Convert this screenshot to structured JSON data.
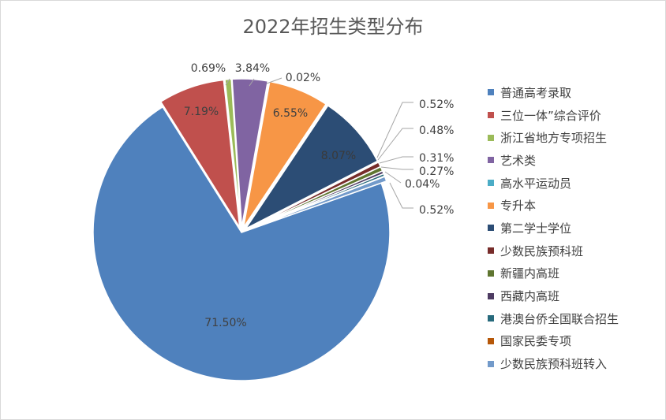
{
  "chart_data": {
    "type": "pie",
    "title": "2022年招生类型分布",
    "legend_position": "right",
    "series": [
      {
        "name": "普通高考录取",
        "value": 71.5,
        "label": "71.50%",
        "color": "#4F81BD"
      },
      {
        "name": "三位一体”综合评价",
        "value": 7.19,
        "label": "7.19%",
        "color": "#C0504D"
      },
      {
        "name": "浙江省地方专项招生",
        "value": 0.69,
        "label": "0.69%",
        "color": "#9BBB59"
      },
      {
        "name": "艺术类",
        "value": 3.84,
        "label": "3.84%",
        "color": "#8064A2"
      },
      {
        "name": "高水平运动员",
        "value": 0.02,
        "label": "0.02%",
        "color": "#4BACC6"
      },
      {
        "name": "专升本",
        "value": 6.55,
        "label": "6.55%",
        "color": "#F79646"
      },
      {
        "name": "第二学士学位",
        "value": 8.07,
        "label": "8.07%",
        "color": "#2C4D75"
      },
      {
        "name": "少数民族预科班",
        "value": 0.52,
        "label": "0.52%",
        "color": "#772C2A"
      },
      {
        "name": "新疆内高班",
        "value": 0.48,
        "label": "0.48%",
        "color": "#5F7530"
      },
      {
        "name": "西藏内高班",
        "value": 0.31,
        "label": "0.31%",
        "color": "#4D3B62"
      },
      {
        "name": "港澳台侨全国联合招生",
        "value": 0.27,
        "label": "0.27%",
        "color": "#276A7C"
      },
      {
        "name": "国家民委专项",
        "value": 0.04,
        "label": "0.04%",
        "color": "#B65708"
      },
      {
        "name": "少数民族预科班转入",
        "value": 0.52,
        "label": "0.52%",
        "color": "#729ACA"
      }
    ]
  }
}
